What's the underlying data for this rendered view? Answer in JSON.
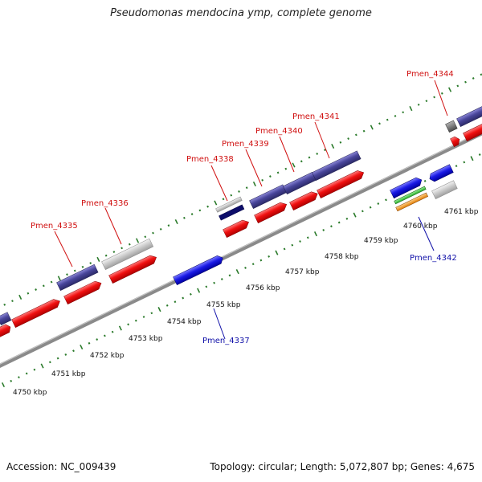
{
  "title": "Pseudomonas mendocina ymp, complete genome",
  "footer": {
    "accession": "Accession: NC_009439",
    "topology": "Topology: circular; Length: 5,072,807 bp; Genes: 4,675"
  },
  "colors": {
    "cds_forward": "#48459a",
    "cds_reverse": "#f01010",
    "blue_gene": "#1a1ae6",
    "grey_gene": "#c8c8c8",
    "backbone": "#8a8a8a",
    "tick_green": "#2a7a2a",
    "label_red": "#d01010",
    "label_blue": "#1010a8"
  },
  "scale_labels": [
    "4750 kbp",
    "4751 kbp",
    "4752 kbp",
    "4753 kbp",
    "4754 kbp",
    "4755 kbp",
    "4756 kbp",
    "4757 kbp",
    "4758 kbp",
    "4759 kbp",
    "4760 kbp",
    "4761 kbp"
  ],
  "gene_labels": [
    {
      "name": "Pmen_4335",
      "strand": "forward"
    },
    {
      "name": "Pmen_4336",
      "strand": "forward"
    },
    {
      "name": "Pmen_4337",
      "strand": "other"
    },
    {
      "name": "Pmen_4338",
      "strand": "forward"
    },
    {
      "name": "Pmen_4339",
      "strand": "forward"
    },
    {
      "name": "Pmen_4340",
      "strand": "forward"
    },
    {
      "name": "Pmen_4341",
      "strand": "forward"
    },
    {
      "name": "Pmen_4342",
      "strand": "other"
    },
    {
      "name": "Pmen_4344",
      "strand": "forward"
    }
  ]
}
